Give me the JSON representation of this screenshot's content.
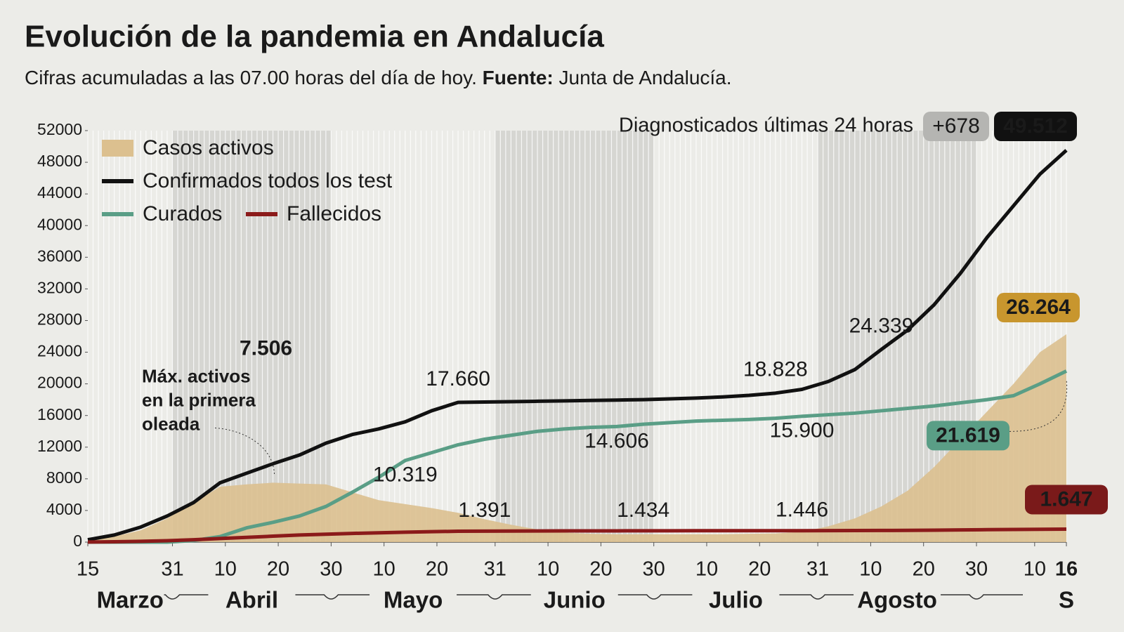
{
  "chart_data": {
    "type": "line",
    "title": "Evolución de la pandemia en Andalucía",
    "subtitle": [
      "Cifras acumuladas a las 07.00 horas del día de hoy.",
      "Fuente:",
      "Junta de Andalucía."
    ],
    "x": [
      0,
      5,
      10,
      15,
      20,
      25,
      30,
      35,
      40,
      45,
      50,
      55,
      60,
      65,
      70,
      75,
      80,
      85,
      90,
      95,
      100,
      105,
      110,
      115,
      120,
      125,
      130,
      135,
      140,
      145,
      150,
      155,
      160,
      165,
      170,
      175,
      180,
      185
    ],
    "xlim": [
      0,
      185
    ],
    "xticks": [
      {
        "value": 0,
        "label": "15"
      },
      {
        "value": 16,
        "label": "31"
      },
      {
        "value": 26,
        "label": "10"
      },
      {
        "value": 36,
        "label": "20"
      },
      {
        "value": 46,
        "label": "30"
      },
      {
        "value": 56,
        "label": "10"
      },
      {
        "value": 66,
        "label": "20"
      },
      {
        "value": 77,
        "label": "31"
      },
      {
        "value": 87,
        "label": "10"
      },
      {
        "value": 97,
        "label": "20"
      },
      {
        "value": 107,
        "label": "30"
      },
      {
        "value": 117,
        "label": "10"
      },
      {
        "value": 127,
        "label": "20"
      },
      {
        "value": 138,
        "label": "31"
      },
      {
        "value": 148,
        "label": "10"
      },
      {
        "value": 158,
        "label": "20"
      },
      {
        "value": 168,
        "label": "30"
      },
      {
        "value": 179,
        "label": "10"
      },
      {
        "value": 185,
        "label": "16"
      }
    ],
    "months": [
      "Marzo",
      "Abril",
      "Mayo",
      "Junio",
      "Julio",
      "Agosto",
      "S"
    ],
    "ylim": [
      0,
      52000
    ],
    "yticks": [
      0,
      4000,
      8000,
      12000,
      16000,
      20000,
      24000,
      28000,
      32000,
      36000,
      40000,
      44000,
      48000,
      52000
    ],
    "series": [
      {
        "name": "Casos activos",
        "type": "area",
        "color": "#dcc08f",
        "values": [
          200,
          700,
          1500,
          3000,
          5000,
          7000,
          7300,
          7506,
          7400,
          7300,
          6300,
          5300,
          4800,
          4300,
          3700,
          2900,
          2200,
          1600,
          1200,
          1050,
          1000,
          1000,
          1000,
          1000,
          1000,
          1050,
          1100,
          1300,
          2000,
          3000,
          4500,
          6500,
          9500,
          13000,
          16500,
          20000,
          24000,
          26264
        ],
        "value_labels": [
          null,
          null,
          null,
          null,
          null,
          null,
          null,
          "7.506",
          null,
          null,
          null,
          null,
          null,
          null,
          null,
          null,
          null,
          null,
          null,
          null,
          null,
          null,
          null,
          null,
          null,
          null,
          null,
          null,
          null,
          null,
          null,
          null,
          null,
          null,
          null,
          null,
          null,
          "26.264"
        ],
        "label_color": "#c8962e"
      },
      {
        "name": "Confirmados todos los test",
        "type": "line",
        "color": "#111111",
        "values": [
          300,
          900,
          1900,
          3300,
          5000,
          7500,
          8700,
          9900,
          11000,
          12500,
          13600,
          14300,
          15200,
          16600,
          17660,
          17700,
          17750,
          17800,
          17850,
          17900,
          17950,
          18000,
          18100,
          18200,
          18350,
          18550,
          18828,
          19300,
          20300,
          21800,
          24339,
          26800,
          30000,
          34000,
          38500,
          42500,
          46500,
          49512
        ],
        "value_labels": [
          null,
          null,
          null,
          null,
          null,
          null,
          null,
          null,
          null,
          null,
          null,
          null,
          null,
          null,
          "17.660",
          null,
          null,
          null,
          null,
          null,
          null,
          null,
          null,
          null,
          null,
          null,
          "18.828",
          null,
          null,
          null,
          "24.339",
          null,
          null,
          null,
          null,
          null,
          null,
          "49.512"
        ],
        "label_color": "#111111"
      },
      {
        "name": "Curados",
        "type": "line",
        "color": "#5a9e86",
        "values": [
          0,
          0,
          0,
          0,
          200,
          700,
          1800,
          2500,
          3300,
          4500,
          6300,
          8200,
          10319,
          11300,
          12300,
          13000,
          13500,
          14000,
          14300,
          14500,
          14606,
          14900,
          15100,
          15300,
          15400,
          15500,
          15650,
          15900,
          16100,
          16300,
          16600,
          16900,
          17200,
          17600,
          18000,
          18500,
          20000,
          21619
        ],
        "value_labels": [
          null,
          null,
          null,
          null,
          null,
          null,
          null,
          null,
          null,
          null,
          null,
          null,
          "10.319",
          null,
          null,
          null,
          null,
          null,
          null,
          null,
          "14.606",
          null,
          null,
          null,
          null,
          null,
          null,
          "15.900",
          null,
          null,
          null,
          null,
          null,
          null,
          null,
          null,
          null,
          "21.619"
        ],
        "label_color": "#5a9e86"
      },
      {
        "name": "Fallecidos",
        "type": "line",
        "color": "#8b1a1a",
        "values": [
          10,
          40,
          100,
          180,
          300,
          450,
          600,
          750,
          900,
          1000,
          1100,
          1180,
          1250,
          1320,
          1370,
          1391,
          1400,
          1410,
          1415,
          1420,
          1425,
          1434,
          1436,
          1438,
          1440,
          1441,
          1443,
          1446,
          1450,
          1460,
          1470,
          1490,
          1510,
          1540,
          1570,
          1600,
          1620,
          1647
        ],
        "value_labels": [
          null,
          null,
          null,
          null,
          null,
          null,
          null,
          null,
          null,
          null,
          null,
          null,
          null,
          null,
          null,
          "1.391",
          null,
          null,
          null,
          null,
          null,
          "1.434",
          null,
          null,
          null,
          null,
          null,
          "1.446",
          null,
          null,
          null,
          null,
          null,
          null,
          null,
          null,
          null,
          "1.647"
        ],
        "label_color": "#7a1a1a"
      }
    ],
    "annotation": [
      "Máx. activos",
      "en la primera",
      "oleada"
    ],
    "headline": {
      "label": "Diagnosticados últimas 24 horas",
      "badge": "+678"
    }
  }
}
